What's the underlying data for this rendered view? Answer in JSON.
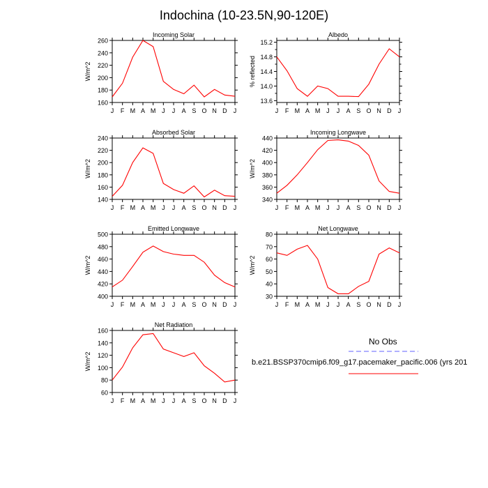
{
  "title": "Indochina (10-23.5N,90-120E)",
  "legend": {
    "obs_label": "No Obs",
    "obs_color": "#8080ff",
    "case_label": "b.e21.BSSP370cmip6.f09_g17.pacemaker_pacific.006 (yrs 201",
    "case_color": "#ff0000"
  },
  "chart_data": [
    {
      "type": "line",
      "title": "Incoming Solar",
      "ylabel": "W/m^2",
      "categories": [
        "J",
        "F",
        "M",
        "A",
        "M",
        "J",
        "J",
        "A",
        "S",
        "O",
        "N",
        "D",
        "J"
      ],
      "values": [
        169,
        191,
        233,
        260,
        250,
        194,
        181,
        174,
        188,
        169,
        181,
        172,
        170
      ],
      "ylim": [
        160,
        260
      ],
      "yticks": [
        160,
        180,
        200,
        220,
        240,
        260
      ],
      "ytick_labels": [
        "160",
        "180",
        "200",
        "220",
        "240",
        "260"
      ]
    },
    {
      "type": "line",
      "title": "Albedo",
      "ylabel": "% reflected",
      "categories": [
        "J",
        "F",
        "M",
        "A",
        "M",
        "J",
        "J",
        "A",
        "S",
        "O",
        "N",
        "D",
        "J"
      ],
      "values": [
        14.8,
        14.42,
        13.93,
        13.72,
        14.0,
        13.93,
        13.72,
        13.72,
        13.71,
        14.05,
        14.6,
        15.02,
        14.8
      ],
      "ylim": [
        13.55,
        15.25
      ],
      "yticks": [
        13.6,
        13.8,
        14.0,
        14.2,
        14.4,
        14.6,
        14.8,
        15.0,
        15.2
      ],
      "ytick_labels": [
        "13.6",
        "",
        "14.0",
        "",
        "14.4",
        "",
        "14.8",
        "",
        "15.2"
      ]
    },
    {
      "type": "line",
      "title": "Absorbed Solar",
      "ylabel": "W/m^2",
      "categories": [
        "J",
        "F",
        "M",
        "A",
        "M",
        "J",
        "J",
        "A",
        "S",
        "O",
        "N",
        "D",
        "J"
      ],
      "values": [
        145,
        163,
        200,
        224,
        215,
        166,
        156,
        150,
        162,
        144,
        155,
        146,
        145
      ],
      "ylim": [
        140,
        240
      ],
      "yticks": [
        140,
        160,
        180,
        200,
        220,
        240
      ],
      "ytick_labels": [
        "140",
        "160",
        "180",
        "200",
        "220",
        "240"
      ]
    },
    {
      "type": "line",
      "title": "Incoming Longwave",
      "ylabel": "W/m^2",
      "categories": [
        "J",
        "F",
        "M",
        "A",
        "M",
        "J",
        "J",
        "A",
        "S",
        "O",
        "N",
        "D",
        "J"
      ],
      "values": [
        350,
        363,
        380,
        400,
        421,
        436,
        437,
        435,
        428,
        412,
        370,
        353,
        350
      ],
      "ylim": [
        340,
        440
      ],
      "yticks": [
        340,
        360,
        380,
        400,
        420,
        440
      ],
      "ytick_labels": [
        "340",
        "360",
        "380",
        "400",
        "420",
        "440"
      ]
    },
    {
      "type": "line",
      "title": "Emitted Longwave",
      "ylabel": "W/m^2",
      "categories": [
        "J",
        "F",
        "M",
        "A",
        "M",
        "J",
        "J",
        "A",
        "S",
        "O",
        "N",
        "D",
        "J"
      ],
      "values": [
        415,
        426,
        448,
        471,
        481,
        472,
        468,
        466,
        466,
        455,
        434,
        422,
        415
      ],
      "ylim": [
        400,
        500
      ],
      "yticks": [
        400,
        420,
        440,
        460,
        480,
        500
      ],
      "ytick_labels": [
        "400",
        "420",
        "440",
        "460",
        "480",
        "500"
      ]
    },
    {
      "type": "line",
      "title": "Net Longwave",
      "ylabel": "W/m^2",
      "categories": [
        "J",
        "F",
        "M",
        "A",
        "M",
        "J",
        "J",
        "A",
        "S",
        "O",
        "N",
        "D",
        "J"
      ],
      "values": [
        65,
        63,
        68,
        71,
        60,
        37,
        32,
        32,
        38,
        42,
        64,
        69,
        65
      ],
      "ylim": [
        30,
        80
      ],
      "yticks": [
        30,
        40,
        50,
        60,
        70,
        80
      ],
      "ytick_labels": [
        "30",
        "40",
        "50",
        "60",
        "70",
        "80"
      ]
    },
    {
      "type": "line",
      "title": "Net Radiation",
      "ylabel": "W/m^2",
      "categories": [
        "J",
        "F",
        "M",
        "A",
        "M",
        "J",
        "J",
        "A",
        "S",
        "O",
        "N",
        "D",
        "J"
      ],
      "values": [
        80,
        101,
        132,
        153,
        155,
        130,
        124,
        118,
        124,
        103,
        91,
        77,
        80
      ],
      "ylim": [
        60,
        160
      ],
      "yticks": [
        60,
        80,
        100,
        120,
        140,
        160
      ],
      "ytick_labels": [
        "60",
        "80",
        "100",
        "120",
        "140",
        "160"
      ]
    }
  ]
}
